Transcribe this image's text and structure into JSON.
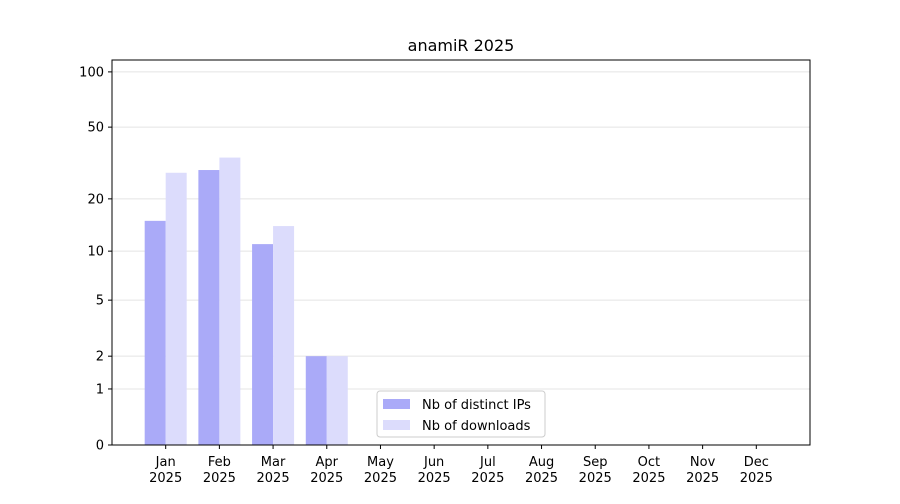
{
  "chart_data": {
    "type": "bar",
    "title": "anamiR 2025",
    "categories": [
      [
        "Jan",
        "2025"
      ],
      [
        "Feb",
        "2025"
      ],
      [
        "Mar",
        "2025"
      ],
      [
        "Apr",
        "2025"
      ],
      [
        "May",
        "2025"
      ],
      [
        "Jun",
        "2025"
      ],
      [
        "Jul",
        "2025"
      ],
      [
        "Aug",
        "2025"
      ],
      [
        "Sep",
        "2025"
      ],
      [
        "Oct",
        "2025"
      ],
      [
        "Nov",
        "2025"
      ],
      [
        "Dec",
        "2025"
      ]
    ],
    "series": [
      {
        "name": "Nb of distinct IPs",
        "color": "#aaaaf8",
        "values": [
          15,
          29,
          11,
          2,
          null,
          null,
          null,
          null,
          null,
          null,
          null,
          null
        ]
      },
      {
        "name": "Nb of downloads",
        "color": "#dcdcfc",
        "values": [
          28,
          34,
          14,
          2,
          null,
          null,
          null,
          null,
          null,
          null,
          null,
          null
        ]
      }
    ],
    "yscale": "log1p",
    "ylim": [
      0,
      116
    ],
    "yticks": [
      0,
      1,
      2,
      5,
      10,
      20,
      50,
      100
    ],
    "grid": true,
    "legend": "lower center"
  }
}
